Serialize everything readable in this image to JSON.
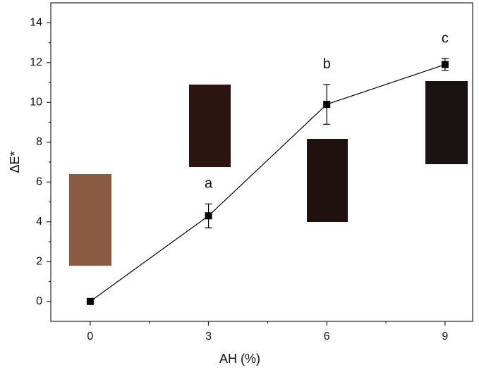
{
  "chart_data": {
    "type": "line",
    "x_label": "AH (%)",
    "y_label": "ΔE*",
    "x": [
      0,
      3,
      6,
      9
    ],
    "values": [
      0,
      4.3,
      9.9,
      11.9
    ],
    "errors": [
      0,
      0.6,
      1.0,
      0.3
    ],
    "point_labels": [
      null,
      "a",
      "b",
      "c"
    ],
    "color": "#000000",
    "xlim": [
      -1,
      9.7
    ],
    "xticks": [
      0,
      3,
      6,
      9
    ],
    "xminorticks": [
      1.5,
      4.5,
      7.5
    ],
    "ylim": [
      -1,
      15
    ],
    "yticks": [
      0,
      2,
      4,
      6,
      8,
      10,
      12,
      14
    ],
    "yminorticks": [
      1,
      3,
      5,
      7,
      9,
      11,
      13
    ],
    "grid": false
  }
}
